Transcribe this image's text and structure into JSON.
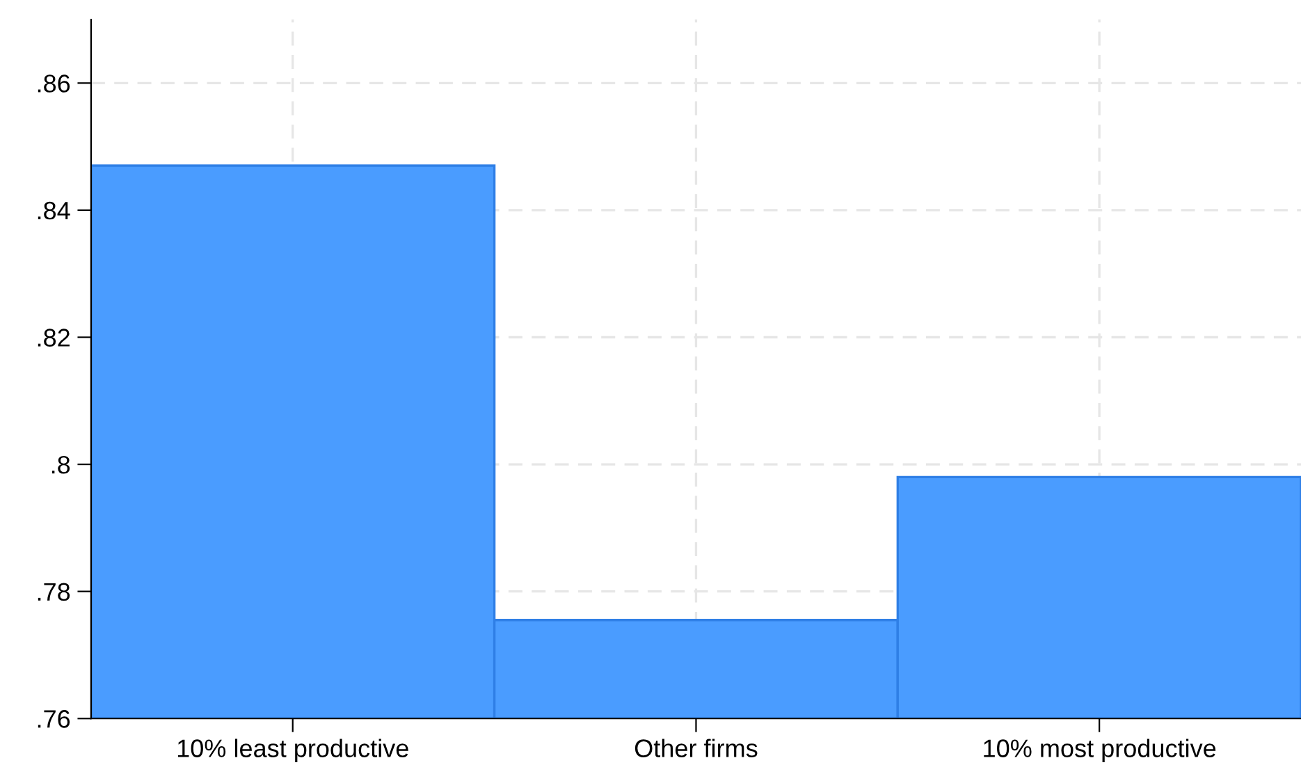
{
  "chart_data": {
    "type": "bar",
    "categories": [
      "10% least productive",
      "Other firms",
      "10% most productive"
    ],
    "values": [
      0.847,
      0.7755,
      0.798
    ],
    "color": "#4a9cff",
    "ylim": [
      0.76,
      0.87
    ],
    "yticks": [
      {
        "value": 0.76,
        "label": ".76"
      },
      {
        "value": 0.78,
        "label": ".78"
      },
      {
        "value": 0.8,
        "label": ".8"
      },
      {
        "value": 0.82,
        "label": ".82"
      },
      {
        "value": 0.84,
        "label": ".84"
      },
      {
        "value": 0.86,
        "label": ".86"
      }
    ],
    "grid": true
  }
}
